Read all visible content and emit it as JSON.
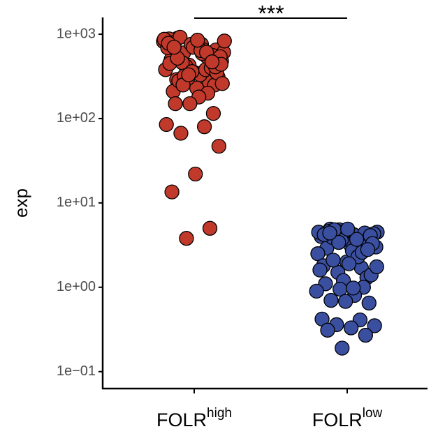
{
  "chart_data": {
    "type": "strip",
    "y_label": "exp",
    "log_y": true,
    "ylim": [
      0.063,
      1580
    ],
    "yticks": [
      {
        "value": 0.1,
        "label": "1e−01"
      },
      {
        "value": 1,
        "label": "1e+00"
      },
      {
        "value": 10,
        "label": "1e+01"
      },
      {
        "value": 100,
        "label": "1e+02"
      },
      {
        "value": 1000,
        "label": "1e+03"
      }
    ],
    "categories": [
      {
        "text": "FOLR",
        "superscript": "high"
      },
      {
        "text": "FOLR",
        "superscript": "low"
      }
    ],
    "annotation": "***",
    "series": [
      {
        "color": "#c0392b",
        "values": [
          820,
          760,
          900,
          650,
          700,
          880,
          540,
          600,
          480,
          720,
          800,
          560,
          430,
          380,
          650,
          920,
          310,
          350,
          500,
          270,
          420,
          610,
          330,
          290,
          250,
          760,
          690,
          380,
          460,
          540,
          230,
          210,
          400,
          300,
          870,
          590,
          280,
          350,
          700,
          450,
          200,
          320,
          260,
          180,
          150,
          115,
          150,
          85,
          80,
          67,
          47,
          22,
          13.5,
          5,
          3.8,
          830,
          640,
          520,
          410,
          360,
          780,
          610,
          250,
          440,
          850,
          700,
          470,
          330
        ]
      },
      {
        "color": "#3a4fa0",
        "values": [
          4.8,
          4.5,
          4.2,
          4.9,
          3.8,
          4.6,
          4.0,
          3.5,
          4.7,
          4.3,
          3.2,
          2.9,
          4.4,
          3.6,
          2.5,
          2.2,
          3.9,
          4.1,
          2.0,
          1.8,
          1.7,
          1.5,
          3.0,
          2.7,
          4.6,
          1.3,
          1.2,
          1.6,
          2.3,
          4.8,
          3.3,
          1.9,
          1.1,
          1.0,
          0.95,
          0.9,
          0.8,
          0.7,
          0.65,
          0.68,
          0.42,
          0.41,
          0.36,
          0.35,
          0.33,
          0.31,
          0.27,
          0.19,
          4.5,
          3.7,
          2.1,
          1.4,
          4.9,
          4.2,
          2.6,
          3.4,
          1.75,
          0.98,
          4.4,
          2.8
        ]
      }
    ]
  }
}
